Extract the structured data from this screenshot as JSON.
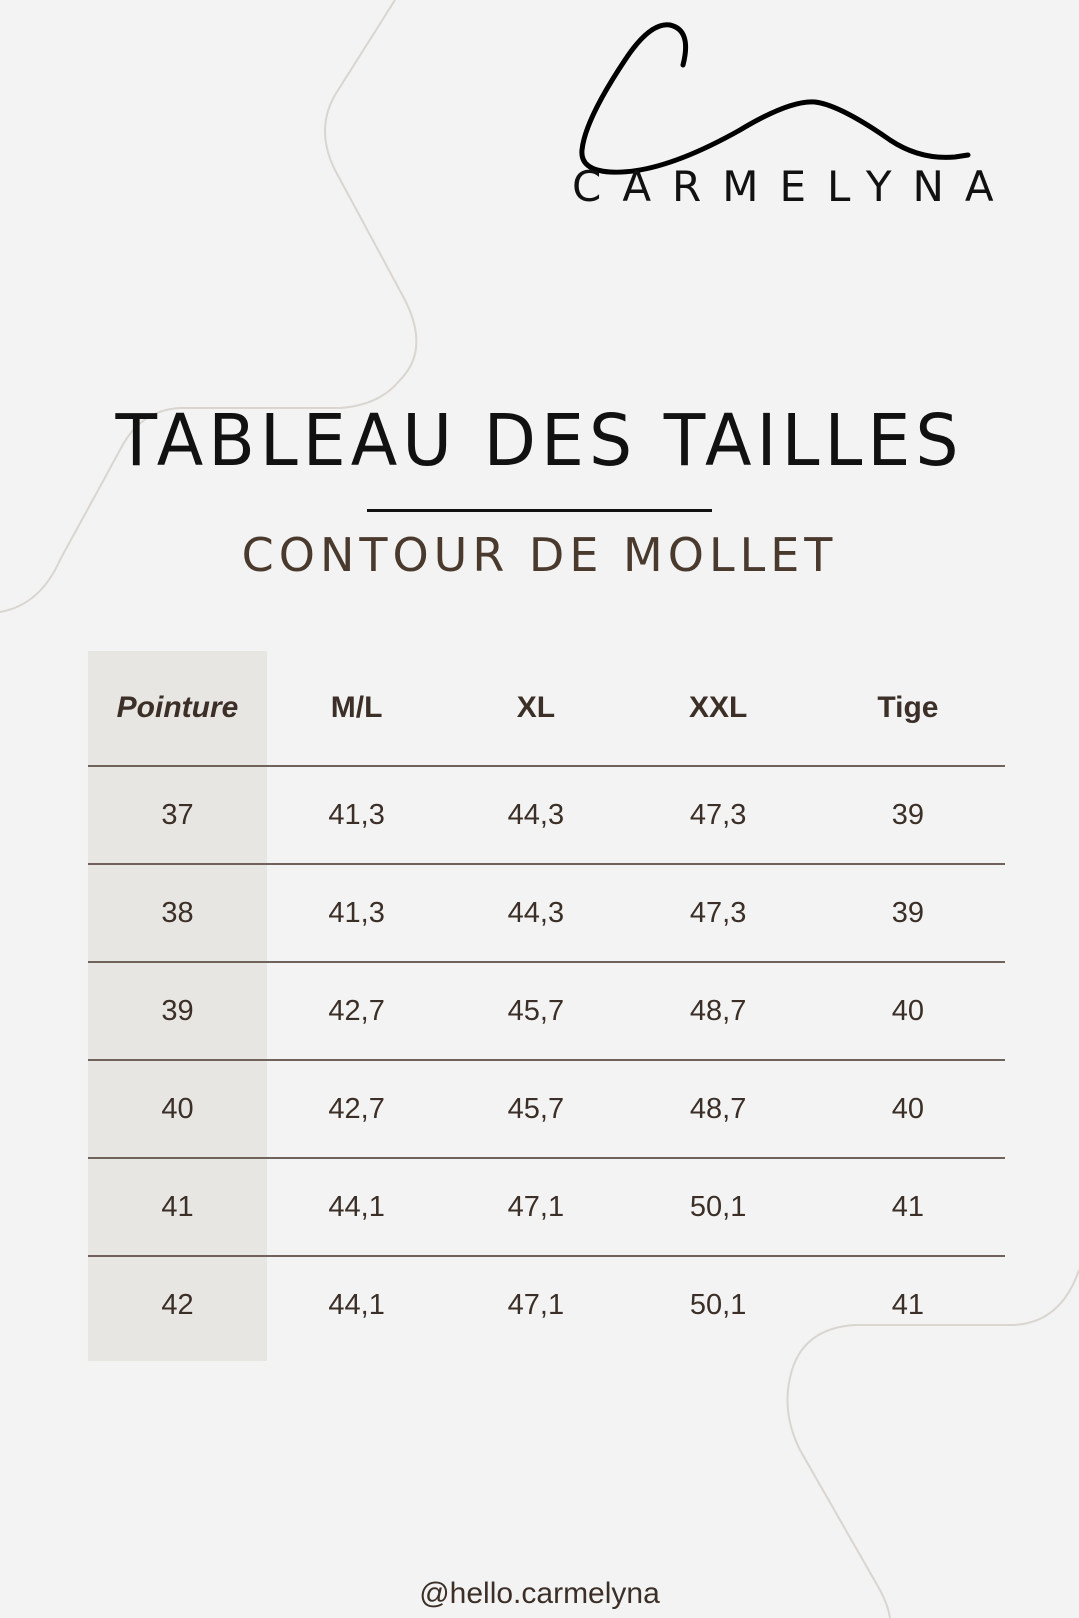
{
  "brand": {
    "logo_text": "CARMELYNA"
  },
  "title": "TABLEAU DES TAILLES",
  "subtitle": "CONTOUR DE MOLLET",
  "table": {
    "headers": [
      "Pointure",
      "M/L",
      "XL",
      "XXL",
      "Tige"
    ],
    "rows": [
      [
        "37",
        "41,3",
        "44,3",
        "47,3",
        "39"
      ],
      [
        "38",
        "41,3",
        "44,3",
        "47,3",
        "39"
      ],
      [
        "39",
        "42,7",
        "45,7",
        "48,7",
        "40"
      ],
      [
        "40",
        "42,7",
        "45,7",
        "48,7",
        "40"
      ],
      [
        "41",
        "44,1",
        "47,1",
        "50,1",
        "41"
      ],
      [
        "42",
        "44,1",
        "47,1",
        "50,1",
        "41"
      ]
    ]
  },
  "footer": "@hello.carmelyna",
  "colors": {
    "background": "#f3f3f3",
    "text_brown": "#3b2f27",
    "first_column": "#e8e6e3"
  }
}
